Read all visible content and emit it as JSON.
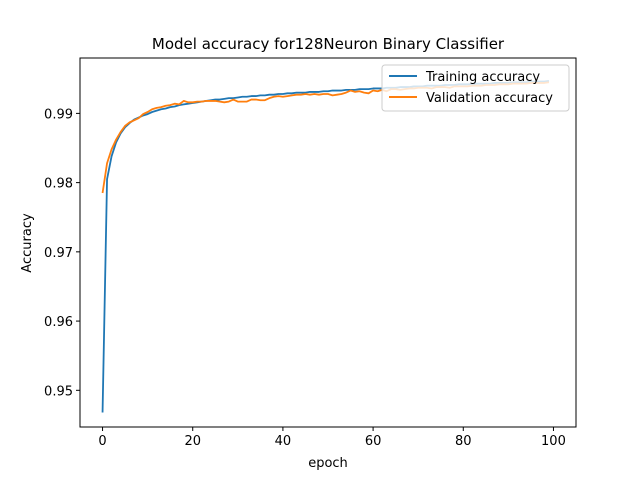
{
  "chart_data": {
    "type": "line",
    "title": "Model accuracy for128Neuron Binary Classifier",
    "xlabel": "epoch",
    "ylabel": "Accuracy",
    "xlim": [
      -5,
      105
    ],
    "ylim": [
      0.9447,
      0.998
    ],
    "xticks": [
      "0",
      "20",
      "40",
      "60",
      "80",
      "100"
    ],
    "yticks": [
      "0.95",
      "0.96",
      "0.97",
      "0.98",
      "0.99"
    ],
    "grid": false,
    "legend_position": "top-right",
    "series": [
      {
        "name": "Training accuracy",
        "color": "#1f77b4",
        "x": [
          0,
          1,
          2,
          3,
          4,
          5,
          6,
          7,
          8,
          9,
          10,
          11,
          12,
          13,
          14,
          15,
          16,
          17,
          18,
          19,
          20,
          21,
          22,
          23,
          24,
          25,
          26,
          27,
          28,
          29,
          30,
          31,
          32,
          33,
          34,
          35,
          36,
          37,
          38,
          39,
          40,
          41,
          42,
          43,
          44,
          45,
          46,
          47,
          48,
          49,
          50,
          51,
          52,
          53,
          54,
          55,
          56,
          57,
          58,
          59,
          60,
          61,
          62,
          63,
          64,
          65,
          66,
          67,
          68,
          69,
          70,
          71,
          72,
          73,
          74,
          75,
          76,
          77,
          78,
          79,
          80,
          81,
          82,
          83,
          84,
          85,
          86,
          87,
          88,
          89,
          90,
          91,
          92,
          93,
          94,
          95,
          96,
          97,
          98,
          99
        ],
        "y": [
          0.9468,
          0.9805,
          0.9838,
          0.9858,
          0.9871,
          0.988,
          0.9886,
          0.9891,
          0.9894,
          0.9897,
          0.9899,
          0.9902,
          0.9904,
          0.9906,
          0.9907,
          0.9909,
          0.991,
          0.9912,
          0.9913,
          0.9914,
          0.9915,
          0.9916,
          0.9917,
          0.9918,
          0.9919,
          0.992,
          0.992,
          0.9921,
          0.9922,
          0.9922,
          0.9923,
          0.9924,
          0.9924,
          0.9925,
          0.9925,
          0.9926,
          0.9926,
          0.9927,
          0.9927,
          0.9928,
          0.9928,
          0.9929,
          0.9929,
          0.993,
          0.993,
          0.993,
          0.9931,
          0.9931,
          0.9931,
          0.9932,
          0.9932,
          0.9933,
          0.9933,
          0.9933,
          0.9934,
          0.9934,
          0.9934,
          0.9935,
          0.9935,
          0.9935,
          0.9936,
          0.9936,
          0.9936,
          0.9937,
          0.9937,
          0.9937,
          0.9938,
          0.9938,
          0.9938,
          0.9939,
          0.9939,
          0.9939,
          0.994,
          0.994,
          0.994,
          0.994,
          0.9941,
          0.9941,
          0.9941,
          0.9942,
          0.9942,
          0.9942,
          0.9942,
          0.9943,
          0.9943,
          0.9943,
          0.9943,
          0.9944,
          0.9944,
          0.9944,
          0.9944,
          0.9945,
          0.9945,
          0.9945,
          0.9945,
          0.9946,
          0.9946,
          0.9946,
          0.9946,
          0.9947
        ]
      },
      {
        "name": "Validation accuracy",
        "color": "#ff7f0e",
        "x": [
          0,
          1,
          2,
          3,
          4,
          5,
          6,
          7,
          8,
          9,
          10,
          11,
          12,
          13,
          14,
          15,
          16,
          17,
          18,
          19,
          20,
          21,
          22,
          23,
          24,
          25,
          26,
          27,
          28,
          29,
          30,
          31,
          32,
          33,
          34,
          35,
          36,
          37,
          38,
          39,
          40,
          41,
          42,
          43,
          44,
          45,
          46,
          47,
          48,
          49,
          50,
          51,
          52,
          53,
          54,
          55,
          56,
          57,
          58,
          59,
          60,
          61,
          62,
          63,
          64,
          65,
          66,
          67,
          68,
          69,
          70,
          71,
          72,
          73,
          74,
          75,
          76,
          77,
          78,
          79,
          80,
          81,
          82,
          83,
          84,
          85,
          86,
          87,
          88,
          89,
          90,
          91,
          92,
          93,
          94,
          95,
          96,
          97,
          98,
          99
        ],
        "y": [
          0.9785,
          0.9828,
          0.9848,
          0.9862,
          0.9873,
          0.9882,
          0.9887,
          0.989,
          0.9893,
          0.9899,
          0.9902,
          0.9906,
          0.9908,
          0.9909,
          0.9911,
          0.9912,
          0.9914,
          0.9913,
          0.9918,
          0.9916,
          0.9916,
          0.9917,
          0.9917,
          0.9918,
          0.9918,
          0.9918,
          0.9917,
          0.9916,
          0.9917,
          0.992,
          0.9917,
          0.9917,
          0.9917,
          0.992,
          0.992,
          0.9919,
          0.9919,
          0.9922,
          0.9924,
          0.9925,
          0.9924,
          0.9925,
          0.9926,
          0.9927,
          0.9927,
          0.9928,
          0.9927,
          0.9928,
          0.9927,
          0.9928,
          0.9928,
          0.9926,
          0.9927,
          0.9928,
          0.993,
          0.9933,
          0.9931,
          0.9932,
          0.993,
          0.9929,
          0.9933,
          0.9932,
          0.9934,
          0.9932,
          0.9935,
          0.9935,
          0.9934,
          0.9935,
          0.9936,
          0.9936,
          0.9937,
          0.9937,
          0.9937,
          0.9936,
          0.9938,
          0.9938,
          0.9938,
          0.9937,
          0.9939,
          0.9939,
          0.9939,
          0.9939,
          0.994,
          0.994,
          0.994,
          0.9941,
          0.9941,
          0.9941,
          0.9942,
          0.9942,
          0.9942,
          0.9943,
          0.9943,
          0.9943,
          0.9943,
          0.9944,
          0.9944,
          0.9944,
          0.9944,
          0.9945
        ]
      }
    ]
  }
}
